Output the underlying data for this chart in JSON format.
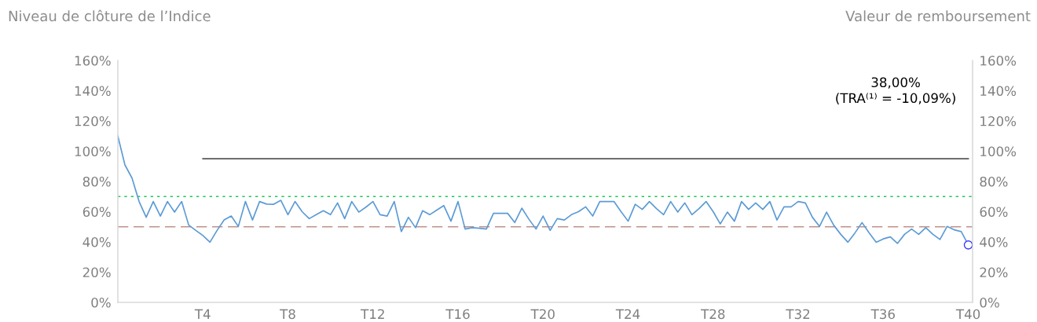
{
  "chart_data": {
    "type": "line",
    "ylabel": "Niveau de clôture de l’Indice",
    "y2label": "Valeur de remboursement",
    "annotations": [
      "38,00%",
      "(TRA⁽¹⁾ = -10,09%)"
    ],
    "categories": [
      null,
      null,
      null,
      null,
      null,
      null,
      null,
      null,
      null,
      null,
      null,
      null,
      "T4",
      null,
      null,
      null,
      null,
      null,
      null,
      null,
      null,
      null,
      null,
      null,
      "T8",
      null,
      null,
      null,
      null,
      null,
      null,
      null,
      null,
      null,
      null,
      null,
      "T12",
      null,
      null,
      null,
      null,
      null,
      null,
      null,
      null,
      null,
      null,
      null,
      "T16",
      null,
      null,
      null,
      null,
      null,
      null,
      null,
      null,
      null,
      null,
      null,
      "T20",
      null,
      null,
      null,
      null,
      null,
      null,
      null,
      null,
      null,
      null,
      null,
      "T24",
      null,
      null,
      null,
      null,
      null,
      null,
      null,
      null,
      null,
      null,
      null,
      "T28",
      null,
      null,
      null,
      null,
      null,
      null,
      null,
      null,
      null,
      null,
      null,
      "T32",
      null,
      null,
      null,
      null,
      null,
      null,
      null,
      null,
      null,
      null,
      null,
      "T36",
      null,
      null,
      null,
      null,
      null,
      null,
      null,
      null,
      null,
      null,
      null,
      "T40"
    ],
    "ylim": [
      0,
      160
    ],
    "yticks": [
      {
        "value": 0,
        "label": "0%"
      },
      {
        "value": 20,
        "label": "20%"
      },
      {
        "value": 40,
        "label": "40%"
      },
      {
        "value": 60,
        "label": "60%"
      },
      {
        "value": 80,
        "label": "80%"
      },
      {
        "value": 100,
        "label": "100%"
      },
      {
        "value": 120,
        "label": "120%"
      },
      {
        "value": 140,
        "label": "140%"
      },
      {
        "value": 160,
        "label": "160%"
      }
    ],
    "y2lim": [
      0,
      160
    ],
    "y2ticks": [
      {
        "value": 0,
        "label": "0%"
      },
      {
        "value": 20,
        "label": "20%"
      },
      {
        "value": 40,
        "label": "40%"
      },
      {
        "value": 60,
        "label": "60%"
      },
      {
        "value": 80,
        "label": "80%"
      },
      {
        "value": 100,
        "label": "100%"
      },
      {
        "value": 120,
        "label": "120%"
      },
      {
        "value": 140,
        "label": "140%"
      },
      {
        "value": 160,
        "label": "160%"
      }
    ],
    "grid": false,
    "legend": false,
    "ref_lines": [
      {
        "axis": "y",
        "value": 70,
        "color": "#22c55e",
        "line_style": "dotted"
      },
      {
        "axis": "y",
        "value": 50,
        "color": "#c0928a",
        "line_style": "dashed"
      }
    ],
    "series": [
      {
        "color": "#5b9bd5",
        "values": [
          110,
          90.9,
          82.2,
          66.7,
          56.3,
          66.7,
          57.1,
          66.7,
          59.7,
          66.7,
          51.1,
          47.6,
          44.2,
          39.8,
          47.6,
          54.5,
          57.1,
          50.2,
          66.7,
          54.5,
          66.7,
          65,
          64.9,
          67.5,
          58,
          66.7,
          60,
          55.4,
          58,
          60.6,
          58,
          65.8,
          55.4,
          66.7,
          59.7,
          63,
          66.7,
          58,
          57.1,
          66.7,
          46.8,
          56.3,
          49.4,
          60.6,
          58,
          61,
          64,
          53.7,
          66.7,
          48.5,
          49.4,
          49,
          48.5,
          58.9,
          58.9,
          58.9,
          52.8,
          62.3,
          55,
          48.5,
          57.1,
          47.6,
          55.4,
          54.5,
          58,
          60,
          63.2,
          57.1,
          66.7,
          66.7,
          66.7,
          60,
          53.7,
          64.9,
          61.5,
          66.7,
          62,
          58,
          66.7,
          59.7,
          65.8,
          58,
          62,
          66.7,
          60,
          51.9,
          59.7,
          53.7,
          66.7,
          61.5,
          65.8,
          61.5,
          66.7,
          54.5,
          63.2,
          63.2,
          66.7,
          65.8,
          56.3,
          50.2,
          59.7,
          51.1,
          45,
          39.8,
          45.9,
          52.8,
          46,
          39.8,
          42,
          43.3,
          39,
          45,
          48.5,
          45,
          49.4,
          45,
          41.6,
          50.2,
          48,
          46.8,
          38
        ]
      },
      {
        "type": "line",
        "color": "#595959",
        "values": [
          null,
          null,
          null,
          null,
          null,
          null,
          null,
          null,
          null,
          null,
          null,
          null,
          95,
          95,
          95,
          95,
          95,
          95,
          95,
          95,
          95,
          95,
          95,
          95,
          95,
          95,
          95,
          95,
          95,
          95,
          95,
          95,
          95,
          95,
          95,
          95,
          95,
          95,
          95,
          95,
          95,
          95,
          95,
          95,
          95,
          95,
          95,
          95,
          95,
          95,
          95,
          95,
          95,
          95,
          95,
          95,
          95,
          95,
          95,
          95,
          95,
          95,
          95,
          95,
          95,
          95,
          95,
          95,
          95,
          95,
          95,
          95,
          95,
          95,
          95,
          95,
          95,
          95,
          95,
          95,
          95,
          95,
          95,
          95,
          95,
          95,
          95,
          95,
          95,
          95,
          95,
          95,
          95,
          95,
          95,
          95,
          95,
          95,
          95,
          95,
          95,
          95,
          95,
          95,
          95,
          95,
          95,
          95,
          95,
          95,
          95,
          95,
          95,
          95,
          95,
          95,
          95,
          95,
          95,
          95,
          95
        ]
      },
      {
        "type": "scatter",
        "color": "#3b3bff",
        "marker": "circle",
        "values": [
          null,
          null,
          null,
          null,
          null,
          null,
          null,
          null,
          null,
          null,
          null,
          null,
          null,
          null,
          null,
          null,
          null,
          null,
          null,
          null,
          null,
          null,
          null,
          null,
          null,
          null,
          null,
          null,
          null,
          null,
          null,
          null,
          null,
          null,
          null,
          null,
          null,
          null,
          null,
          null,
          null,
          null,
          null,
          null,
          null,
          null,
          null,
          null,
          null,
          null,
          null,
          null,
          null,
          null,
          null,
          null,
          null,
          null,
          null,
          null,
          null,
          null,
          null,
          null,
          null,
          null,
          null,
          null,
          null,
          null,
          null,
          null,
          null,
          null,
          null,
          null,
          null,
          null,
          null,
          null,
          null,
          null,
          null,
          null,
          null,
          null,
          null,
          null,
          null,
          null,
          null,
          null,
          null,
          null,
          null,
          null,
          null,
          null,
          null,
          null,
          null,
          null,
          null,
          null,
          null,
          null,
          null,
          null,
          null,
          null,
          null,
          null,
          null,
          null,
          null,
          null,
          null,
          null,
          null,
          null,
          38
        ]
      }
    ]
  }
}
